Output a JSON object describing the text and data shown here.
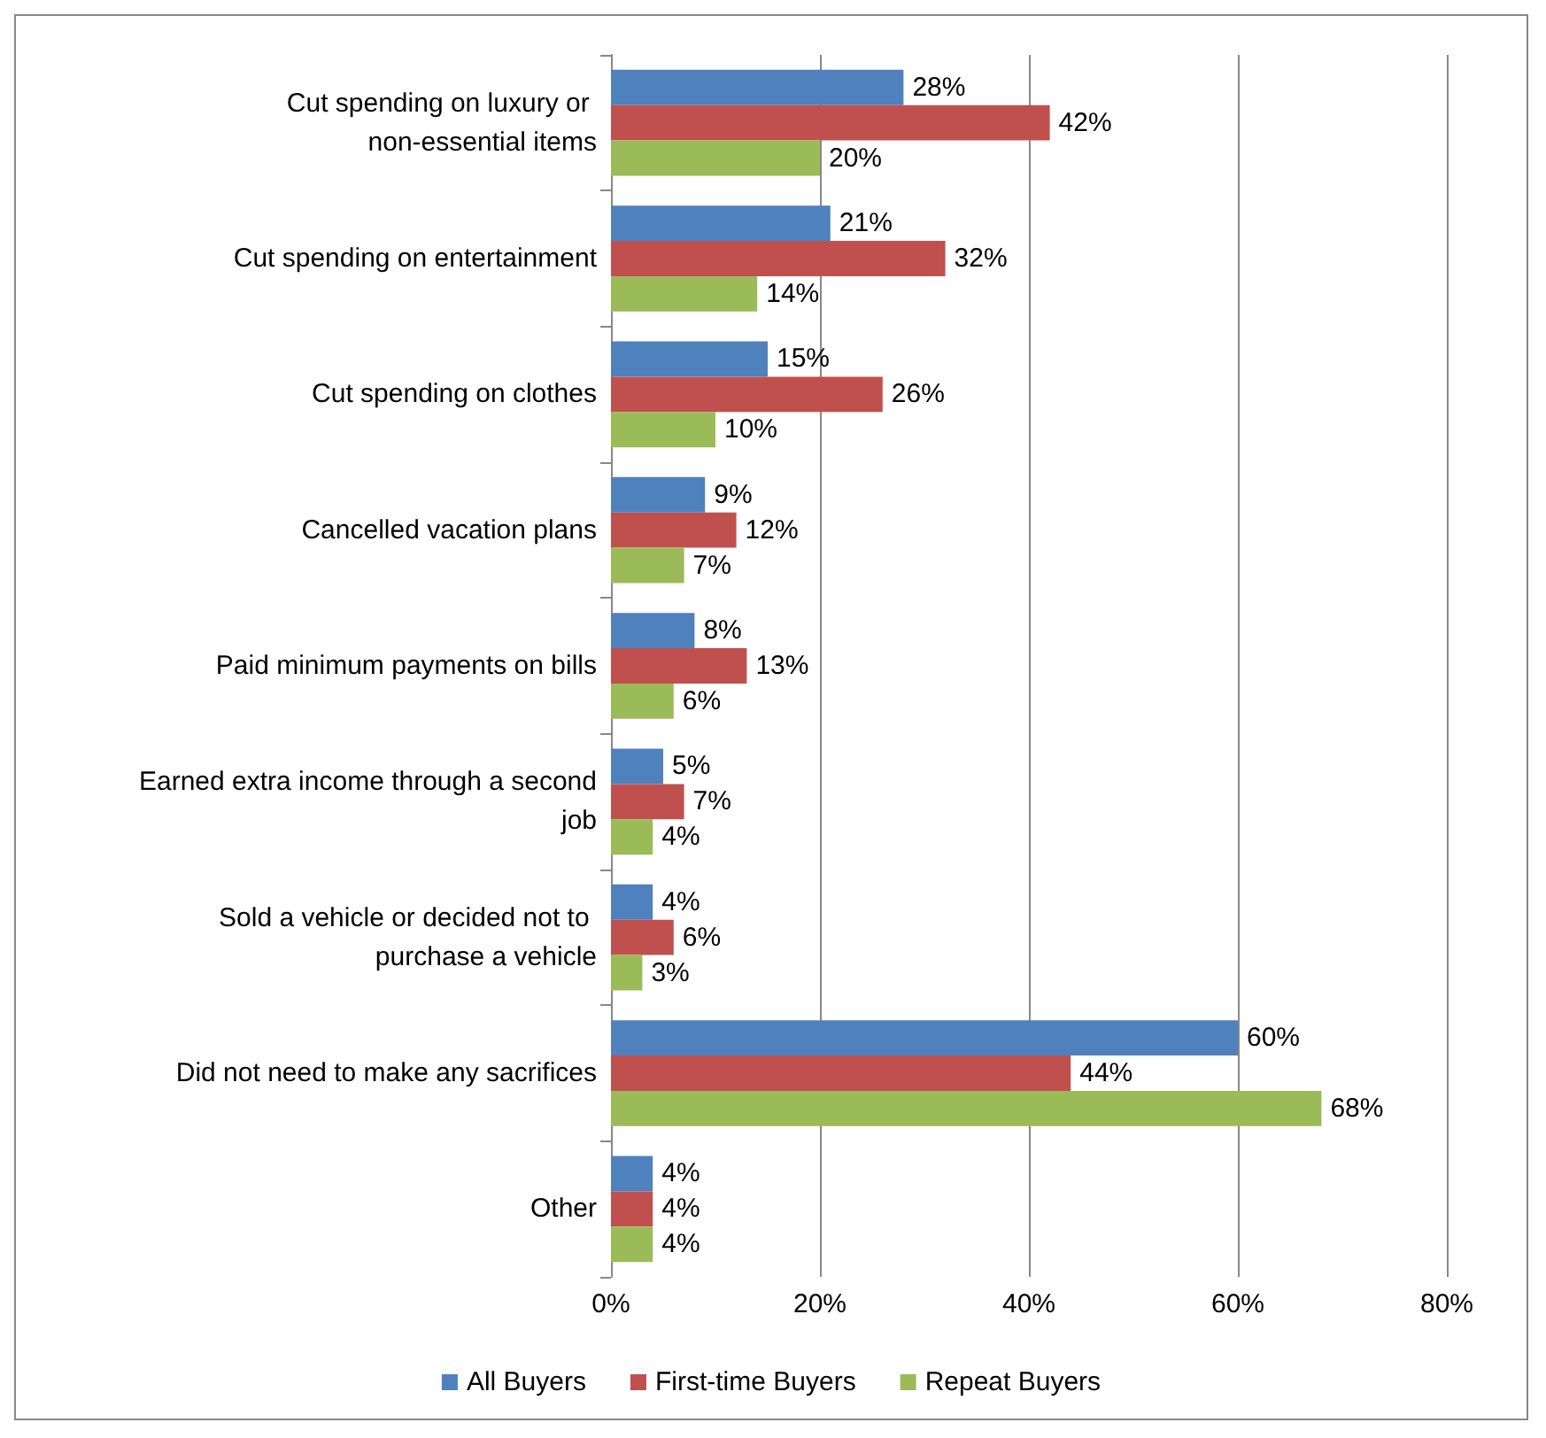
{
  "chart_data": {
    "type": "bar",
    "orientation": "horizontal",
    "categories": [
      "Cut spending on luxury or non-essential items",
      "Cut spending on entertainment",
      "Cut spending on clothes",
      "Cancelled vacation plans",
      "Paid minimum payments on bills",
      "Earned extra income through a second job",
      "Sold a vehicle or decided not to purchase a vehicle",
      "Did not need to make any sacrifices",
      "Other"
    ],
    "series": [
      {
        "name": "All Buyers",
        "color": "#4f81bd",
        "values": [
          28,
          21,
          15,
          9,
          8,
          5,
          4,
          60,
          4
        ],
        "value_labels": [
          "28%",
          "21%",
          "15%",
          "9%",
          "8%",
          "5%",
          "4%",
          "60%",
          "4%"
        ]
      },
      {
        "name": "First-time Buyers",
        "color": "#c0504d",
        "values": [
          42,
          32,
          26,
          12,
          13,
          7,
          6,
          44,
          4
        ],
        "value_labels": [
          "42%",
          "32%",
          "26%",
          "12%",
          "13%",
          "7%",
          "6%",
          "44%",
          "4%"
        ]
      },
      {
        "name": "Repeat Buyers",
        "color": "#9bbb59",
        "values": [
          20,
          14,
          10,
          7,
          6,
          4,
          3,
          68,
          4
        ],
        "value_labels": [
          "20%",
          "14%",
          "10%",
          "7%",
          "6%",
          "4%",
          "3%",
          "68%",
          "4%"
        ]
      }
    ],
    "xlim": [
      0,
      80
    ],
    "xticks": [
      {
        "value": 0,
        "label": "0%"
      },
      {
        "value": 20,
        "label": "20%"
      },
      {
        "value": 40,
        "label": "40%"
      },
      {
        "value": 60,
        "label": "60%"
      },
      {
        "value": 80,
        "label": "80%"
      }
    ],
    "grid": "x",
    "legend": "bottom"
  }
}
